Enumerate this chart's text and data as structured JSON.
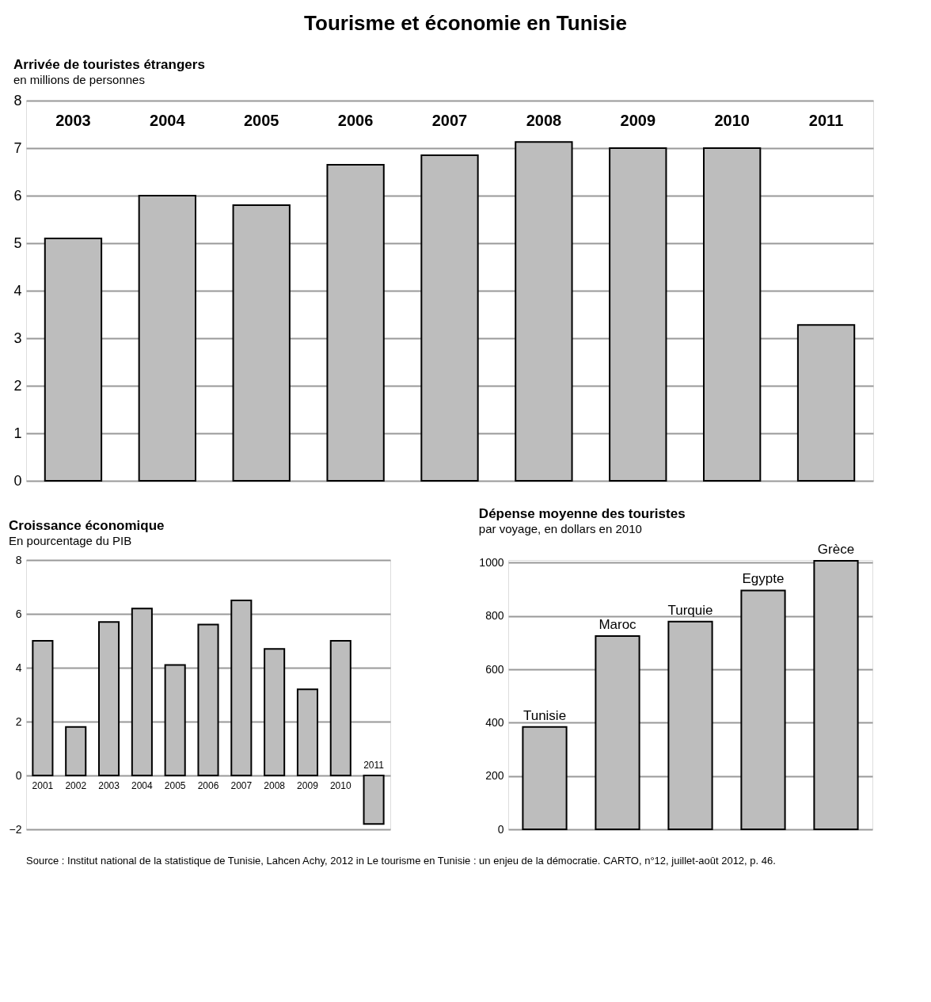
{
  "chart_data": [
    {
      "type": "other",
      "title": "Tourisme et économie en Tunisie"
    },
    {
      "type": "bar",
      "title": "Arrivée de touristes étrangers",
      "subtitle": "en millions de personnes",
      "categories": [
        "2003",
        "2004",
        "2005",
        "2006",
        "2007",
        "2008",
        "2009",
        "2010",
        "2011"
      ],
      "values": [
        5.1,
        6.0,
        5.8,
        6.65,
        6.85,
        7.13,
        7.0,
        7.0,
        3.28
      ],
      "color": "#bdbdbd",
      "ylim": [
        0,
        8
      ],
      "yticks": [
        0,
        1,
        2,
        3,
        4,
        5,
        6,
        7,
        8
      ],
      "grid": "y"
    },
    {
      "type": "bar",
      "title": "Croissance économique",
      "subtitle": "En pourcentage du PIB",
      "categories": [
        "2001",
        "2002",
        "2003",
        "2004",
        "2005",
        "2006",
        "2007",
        "2008",
        "2009",
        "2010",
        "2011"
      ],
      "values": [
        5.0,
        1.8,
        5.7,
        6.2,
        4.1,
        5.6,
        6.5,
        4.7,
        3.2,
        5.0,
        -1.8
      ],
      "color": "#bdbdbd",
      "ylim": [
        -2,
        8
      ],
      "yticks": [
        -2,
        0,
        2,
        4,
        6,
        8
      ],
      "grid": "y"
    },
    {
      "type": "bar",
      "title": "Dépense moyenne des touristes",
      "subtitle": "par voyage, en dollars en 2010",
      "categories": [
        "Tunisie",
        "Maroc",
        "Turquie",
        "Egypte",
        "Grèce"
      ],
      "values": [
        384,
        725,
        779,
        896,
        1007
      ],
      "color": "#bdbdbd",
      "ylim": [
        0,
        1010
      ],
      "yticks": [
        0,
        200,
        400,
        600,
        800,
        1000
      ],
      "grid": "y",
      "annotations": [
        "Source : Institut national de la statistique de Tunisie, Lahcen Achy, 2012 in Le tourisme en Tunisie : un enjeu de la démocratie. CARTO, n°12, juillet-août 2012, p. 46."
      ]
    }
  ]
}
